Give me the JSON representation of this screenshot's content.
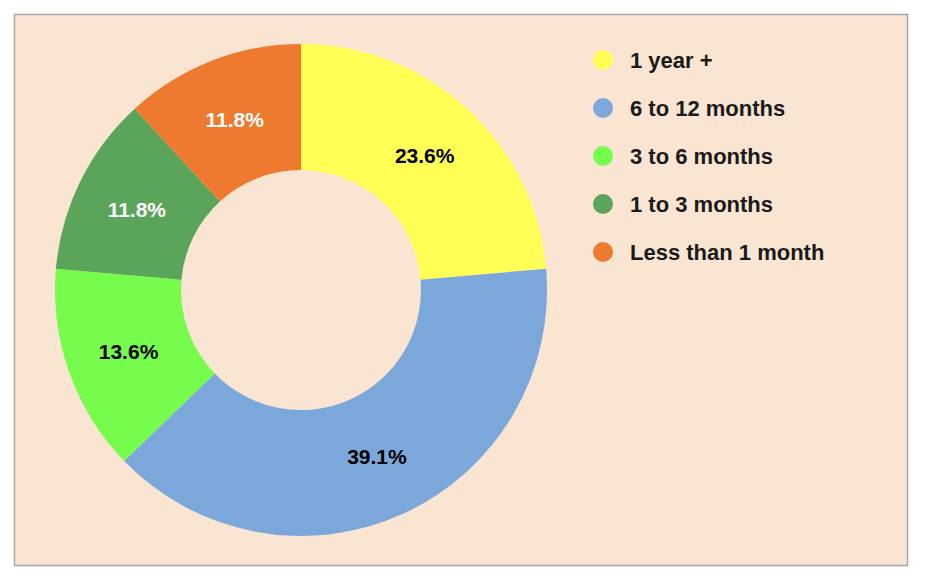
{
  "chart_data": {
    "type": "donut",
    "categories": [
      "1 year +",
      "6 to 12 months",
      "3 to 6 months",
      "1 to 3 months",
      "Less than 1 month"
    ],
    "values": [
      23.6,
      39.1,
      13.6,
      11.8,
      11.8
    ],
    "value_labels": [
      "23.6%",
      "39.1%",
      "13.6%",
      "11.8%",
      "11.8%"
    ],
    "colors": [
      "#ffff55",
      "#7ba7db",
      "#76fc4c",
      "#5aa55a",
      "#ee7a30"
    ],
    "data_labels": true,
    "legend": "right"
  }
}
